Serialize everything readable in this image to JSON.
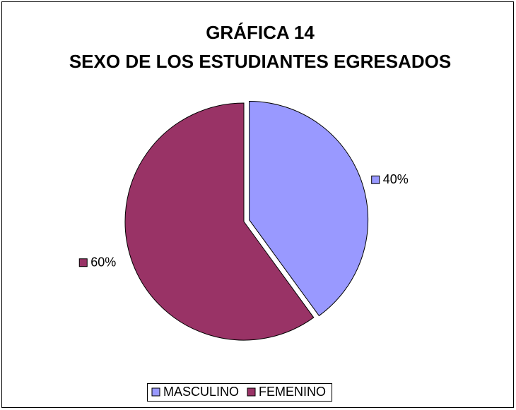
{
  "chart_data": {
    "type": "pie",
    "title": [
      "GRÁFICA 14",
      "SEXO DE LOS ESTUDIANTES EGRESADOS"
    ],
    "categories": [
      "MASCULINO",
      "FEMENINO"
    ],
    "values": [
      40,
      60
    ],
    "value_labels": [
      "40%",
      "60%"
    ],
    "colors": [
      "#9999ff",
      "#993366"
    ],
    "legend": "bottom"
  }
}
